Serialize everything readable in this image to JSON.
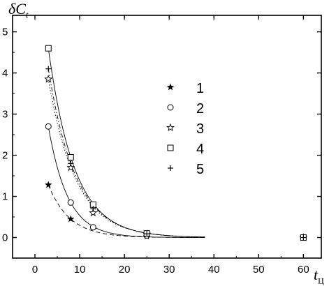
{
  "chart_data": {
    "type": "scatter",
    "ylabel_main": "δC",
    "ylabel_sub": "t",
    "xlabel_main": "t",
    "xlabel_sub": "Ц",
    "xlim": [
      -5,
      64
    ],
    "ylim": [
      -0.5,
      5.4
    ],
    "xticks": [
      0,
      10,
      20,
      30,
      40,
      50,
      60
    ],
    "yticks": [
      0,
      1,
      2,
      3,
      4,
      5
    ],
    "legend_position": "center",
    "series": [
      {
        "name": "1",
        "marker": "filled-star",
        "line": "dash",
        "x": [
          3,
          8,
          25,
          60
        ],
        "y": [
          1.28,
          0.45,
          0.03,
          0.0
        ]
      },
      {
        "name": "2",
        "marker": "open-circle",
        "line": "solid",
        "x": [
          3,
          8,
          13,
          25,
          60
        ],
        "y": [
          2.7,
          0.85,
          0.25,
          0.05,
          0.0
        ]
      },
      {
        "name": "3",
        "marker": "open-star",
        "line": "dot",
        "x": [
          3,
          8,
          13,
          25,
          60
        ],
        "y": [
          3.85,
          1.7,
          0.6,
          0.08,
          0.0
        ]
      },
      {
        "name": "4",
        "marker": "open-square",
        "line": "solid",
        "x": [
          3,
          8,
          13,
          25,
          60
        ],
        "y": [
          4.6,
          1.95,
          0.8,
          0.1,
          0.0
        ]
      },
      {
        "name": "5",
        "marker": "plus",
        "line": "dashdot",
        "x": [
          3,
          8,
          13,
          25,
          60
        ],
        "y": [
          4.1,
          1.8,
          0.7,
          0.09,
          0.0
        ]
      }
    ]
  }
}
